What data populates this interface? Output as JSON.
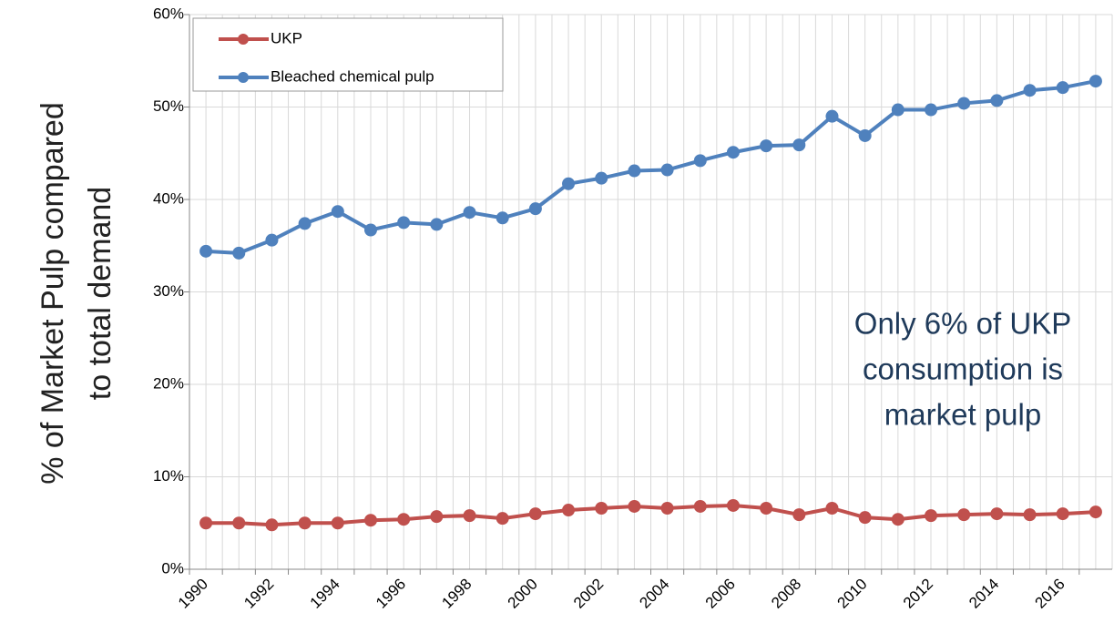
{
  "chart_data": {
    "type": "line",
    "y_label": [
      "% of Market Pulp compared",
      "to total demand"
    ],
    "annotation": [
      "Only 6% of UKP",
      "consumption is",
      "market pulp"
    ],
    "categories": [
      "1990",
      null,
      "1992",
      null,
      "1994",
      null,
      "1996",
      null,
      "1998",
      null,
      "2000",
      null,
      "2002",
      null,
      "2004",
      null,
      "2006",
      null,
      "2008",
      null,
      "2010",
      null,
      "2012",
      null,
      "2014",
      null,
      "2016",
      null
    ],
    "series": [
      {
        "name": "UKP",
        "color": "#c0504d",
        "values": [
          5.0,
          5.0,
          4.8,
          5.0,
          5.0,
          5.3,
          5.4,
          5.7,
          5.8,
          5.5,
          6.0,
          6.4,
          6.6,
          6.8,
          6.6,
          6.8,
          6.9,
          6.6,
          5.9,
          6.6,
          5.6,
          5.4,
          5.8,
          5.9,
          6.0,
          5.9,
          6.0,
          6.2
        ]
      },
      {
        "name": "Bleached chemical pulp",
        "color": "#4f81bd",
        "values": [
          34.4,
          34.2,
          35.6,
          37.4,
          38.7,
          36.7,
          37.5,
          37.3,
          38.6,
          38.0,
          39.0,
          41.7,
          42.3,
          43.1,
          43.2,
          44.2,
          45.1,
          45.8,
          45.9,
          49.0,
          46.9,
          49.7,
          49.7,
          50.4,
          50.7,
          51.8,
          52.1,
          52.8
        ]
      }
    ],
    "ylim": [
      0,
      60
    ],
    "yticks": [
      {
        "value": 0,
        "label": "0%"
      },
      {
        "value": 10,
        "label": "10%"
      },
      {
        "value": 20,
        "label": "20%"
      },
      {
        "value": 30,
        "label": "30%"
      },
      {
        "value": 40,
        "label": "40%"
      },
      {
        "value": 50,
        "label": "50%"
      },
      {
        "value": 60,
        "label": "60%"
      }
    ],
    "grid": true,
    "legend": "upper left"
  }
}
